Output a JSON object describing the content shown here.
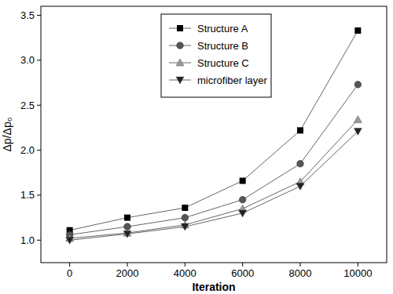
{
  "chart_data": {
    "type": "line",
    "x_label": "Iteration",
    "y_label": "Δp/Δp₀",
    "x": [
      0,
      2000,
      4000,
      6000,
      8000,
      10000
    ],
    "series": [
      {
        "name": "Structure A",
        "color": "#000000",
        "marker": "square",
        "values": [
          1.11,
          1.25,
          1.36,
          1.66,
          2.22,
          3.33
        ]
      },
      {
        "name": "Structure B",
        "color": "#555555",
        "marker": "circle",
        "values": [
          1.06,
          1.15,
          1.25,
          1.45,
          1.85,
          2.73
        ]
      },
      {
        "name": "Structure C",
        "color": "#9a9a9a",
        "marker": "triangle-up",
        "values": [
          1.02,
          1.08,
          1.17,
          1.35,
          1.65,
          2.34
        ]
      },
      {
        "name": "microfiber layer",
        "color": "#222222",
        "marker": "triangle-down",
        "values": [
          1.0,
          1.07,
          1.15,
          1.3,
          1.6,
          2.21
        ]
      }
    ],
    "xlim": [
      -1000,
      11000
    ],
    "xticks": [
      0,
      2000,
      4000,
      6000,
      8000,
      10000
    ],
    "ylim": [
      0.75,
      3.6
    ],
    "yticks": [
      {
        "value": 1,
        "label": "1.0"
      },
      1.5,
      {
        "value": 2,
        "label": "2.0"
      },
      2.5,
      {
        "value": 3,
        "label": "3.0"
      },
      3.5
    ],
    "legend": "upper left",
    "grid": false
  }
}
